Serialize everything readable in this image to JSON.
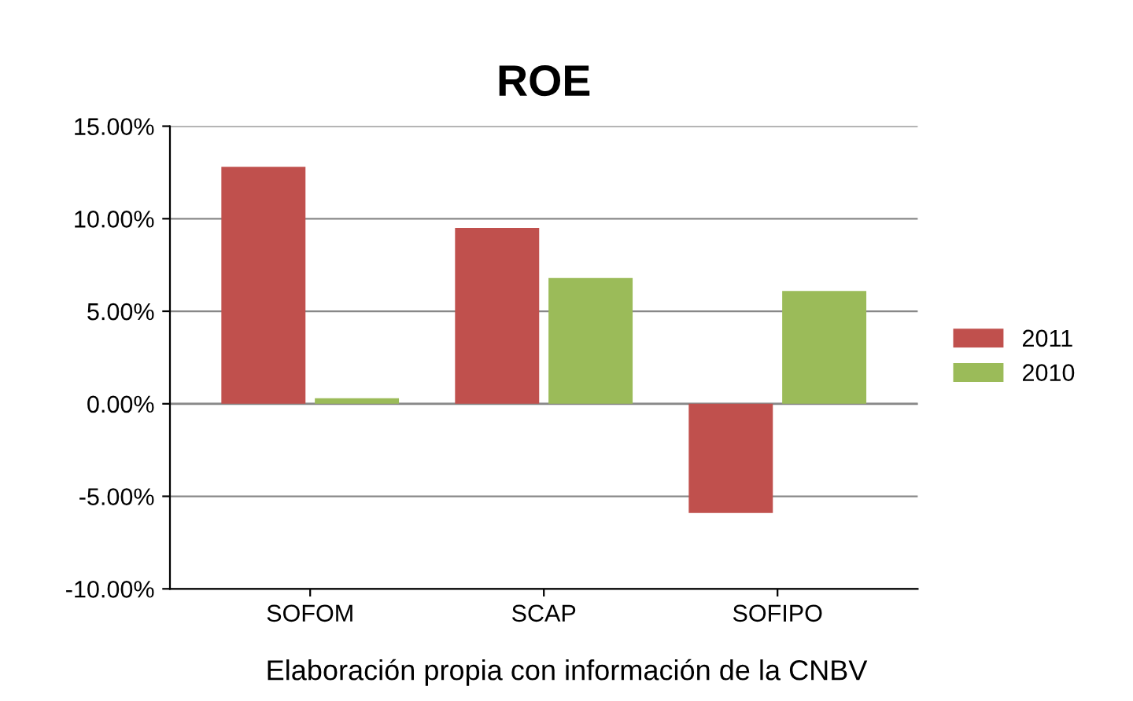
{
  "chart_data": {
    "type": "bar",
    "title": "ROE",
    "categories": [
      "SOFOM",
      "SCAP",
      "SOFIPO"
    ],
    "series": [
      {
        "name": "2011",
        "color": "#c0504d",
        "values": [
          12.8,
          9.5,
          -5.9
        ]
      },
      {
        "name": "2010",
        "color": "#9bbb59",
        "values": [
          0.3,
          6.8,
          6.1
        ]
      }
    ],
    "ylim": [
      -10,
      15
    ],
    "yticks": [
      {
        "value": -10,
        "label": "-10.00%"
      },
      {
        "value": -5,
        "label": "-5.00%"
      },
      {
        "value": 0,
        "label": "0.00%"
      },
      {
        "value": 5,
        "label": "5.00%"
      },
      {
        "value": 10,
        "label": "10.00%"
      },
      {
        "value": 15,
        "label": "15.00%"
      }
    ],
    "grid": "y",
    "legend": "right",
    "annotations": [
      "Elaboración propia con información de la CNBV"
    ]
  }
}
